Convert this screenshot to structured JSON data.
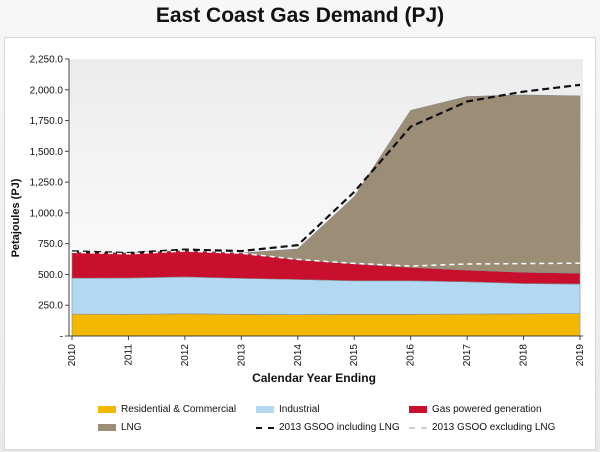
{
  "title": "East Coast Gas Demand (PJ)",
  "chart_data": {
    "type": "area",
    "title": "East Coast Gas Demand (PJ)",
    "xlabel": "Calendar Year Ending",
    "ylabel": "Petajoules (PJ)",
    "x": [
      "2010",
      "2011",
      "2012",
      "2013",
      "2014",
      "2015",
      "2016",
      "2017",
      "2018",
      "2019"
    ],
    "ylim": [
      0,
      2250
    ],
    "y_ticks": [
      "-",
      "250.0",
      "500.0",
      "750.0",
      "1,000.0",
      "1,250.0",
      "1,500.0",
      "1,750.0",
      "2,000.0",
      "2,250.0"
    ],
    "y_tick_values": [
      0,
      250,
      500,
      750,
      1000,
      1250,
      1500,
      1750,
      2000,
      2250
    ],
    "grid": false,
    "stacked": true,
    "series": [
      {
        "name": "Residential & Commercial",
        "kind": "area",
        "color": "#f5b800",
        "values": [
          178,
          176,
          180,
          176,
          174,
          176,
          176,
          178,
          180,
          182
        ]
      },
      {
        "name": "Industrial",
        "kind": "area",
        "color": "#b3d9f2",
        "values": [
          292,
          295,
          300,
          292,
          285,
          272,
          272,
          262,
          246,
          240
        ]
      },
      {
        "name": "Gas powered generation",
        "kind": "area",
        "color": "#c8102e",
        "values": [
          210,
          205,
          214,
          206,
          162,
          138,
          110,
          95,
          92,
          88
        ]
      },
      {
        "name": "LNG",
        "kind": "area",
        "color": "#9c8d77",
        "values": [
          0,
          0,
          0,
          0,
          86,
          545,
          1275,
          1410,
          1440,
          1440
        ]
      },
      {
        "name": "2013 GSOO including LNG",
        "kind": "line",
        "style": "dashed",
        "color": "#111111",
        "values": [
          688,
          674,
          702,
          690,
          738,
          1170,
          1700,
          1905,
          1985,
          2040
        ]
      },
      {
        "name": "2013 GSOO excluding LNG",
        "kind": "line",
        "style": "dashed",
        "color": "#ffffff",
        "values": [
          680,
          668,
          690,
          672,
          622,
          590,
          568,
          585,
          588,
          592
        ]
      }
    ],
    "legend_position": "bottom"
  },
  "legend": {
    "items": [
      {
        "label": "Residential & Commercial",
        "color": "#f5b800",
        "kind": "swatch"
      },
      {
        "label": "Industrial",
        "color": "#b3d9f2",
        "kind": "swatch"
      },
      {
        "label": "Gas powered generation",
        "color": "#c8102e",
        "kind": "swatch"
      },
      {
        "label": "LNG",
        "color": "#9c8d77",
        "kind": "swatch"
      },
      {
        "label": "2013 GSOO including LNG",
        "color": "#111111",
        "kind": "line"
      },
      {
        "label": "2013 GSOO excluding LNG",
        "color": "#cccccc",
        "kind": "line"
      }
    ]
  }
}
